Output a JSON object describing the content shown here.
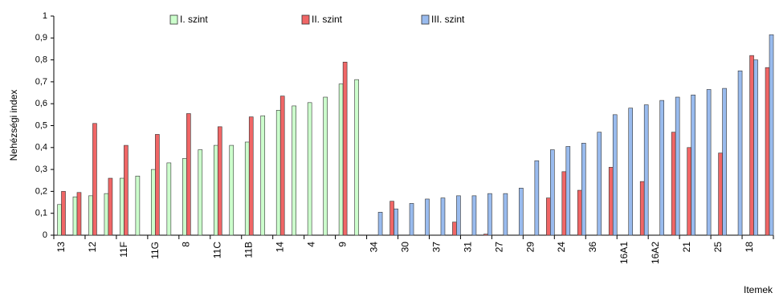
{
  "chart_data": {
    "type": "bar",
    "y_label": "Nehézségi index",
    "x_label": "Itemek",
    "categories": [
      "13",
      null,
      "12",
      null,
      "11F",
      null,
      "11G",
      null,
      "8",
      null,
      "11C",
      null,
      "11B",
      null,
      "14",
      null,
      "4",
      null,
      "9",
      null,
      "34",
      null,
      "30",
      null,
      "37",
      null,
      "31",
      null,
      "27",
      null,
      "29",
      null,
      "24",
      null,
      "36",
      null,
      "16A1",
      null,
      "16A2",
      null,
      "21",
      null,
      "25",
      null,
      "18",
      null
    ],
    "series": [
      {
        "name": "I. szint",
        "color": "#ccffcc",
        "values": [
          0.14,
          0.175,
          0.18,
          0.19,
          0.26,
          0.27,
          0.3,
          0.33,
          0.35,
          0.39,
          0.41,
          0.41,
          0.425,
          0.545,
          0.57,
          0.59,
          0.605,
          0.63,
          0.69,
          0.71,
          null,
          null,
          null,
          null,
          null,
          null,
          null,
          null,
          null,
          null,
          null,
          null,
          null,
          null,
          null,
          null,
          null,
          null,
          null,
          null,
          null,
          null,
          null,
          null,
          null,
          null
        ]
      },
      {
        "name": "II. szint",
        "color": "#f06666",
        "values": [
          0.2,
          0.195,
          0.51,
          0.26,
          0.41,
          null,
          0.46,
          null,
          0.555,
          null,
          0.495,
          null,
          0.54,
          null,
          0.635,
          null,
          null,
          null,
          0.79,
          null,
          null,
          0.155,
          null,
          null,
          null,
          0.06,
          null,
          0.005,
          null,
          null,
          null,
          0.17,
          0.29,
          0.205,
          null,
          0.31,
          null,
          0.245,
          null,
          0.47,
          0.4,
          null,
          0.375,
          null,
          0.82,
          0.765
        ]
      },
      {
        "name": "III. szint",
        "color": "#99bbee",
        "values": [
          null,
          null,
          null,
          null,
          null,
          null,
          null,
          null,
          null,
          null,
          null,
          null,
          null,
          null,
          null,
          null,
          null,
          null,
          null,
          null,
          0.105,
          0.12,
          0.145,
          0.165,
          0.17,
          0.18,
          0.18,
          0.19,
          0.19,
          0.215,
          0.34,
          0.39,
          0.405,
          0.42,
          0.47,
          0.55,
          0.58,
          0.595,
          0.615,
          0.63,
          0.64,
          0.665,
          0.67,
          0.75,
          0.8,
          0.915
        ]
      }
    ],
    "ylim": [
      0,
      1
    ],
    "yticks": [
      0,
      {
        "value": 0.1,
        "label": "0,1"
      },
      {
        "value": 0.2,
        "label": "0,2"
      },
      {
        "value": 0.3,
        "label": "0,3"
      },
      {
        "value": 0.4,
        "label": "0,4"
      },
      {
        "value": 0.5,
        "label": "0,5"
      },
      {
        "value": 0.6,
        "label": "0,6"
      },
      {
        "value": 0.7,
        "label": "0,7"
      },
      {
        "value": 0.8,
        "label": "0,8"
      },
      {
        "value": 0.9,
        "label": "0,9"
      },
      1
    ],
    "grid": false
  }
}
